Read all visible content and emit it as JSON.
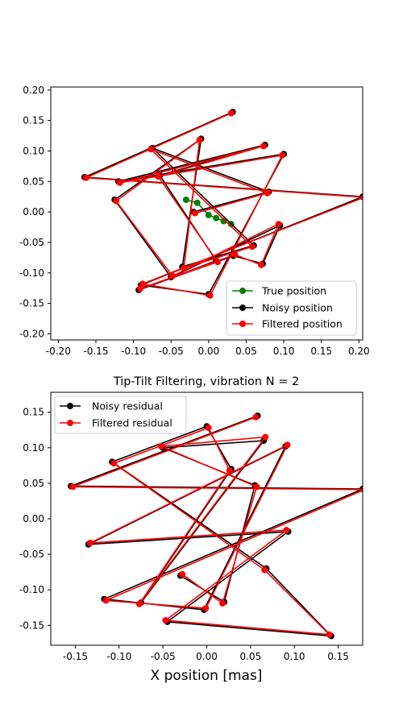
{
  "chart_data": [
    {
      "type": "scatter",
      "title": "",
      "xlabel": "",
      "ylabel": "",
      "xlim": [
        -0.21,
        0.205
      ],
      "ylim": [
        -0.21,
        0.205
      ],
      "xticks": [
        "-0.20",
        "-0.15",
        "-0.10",
        "-0.05",
        "0.00",
        "0.05",
        "0.10",
        "0.15",
        "0.20"
      ],
      "yticks": [
        "-0.20",
        "-0.15",
        "-0.10",
        "-0.05",
        "0.00",
        "0.05",
        "0.10",
        "0.15",
        "0.20"
      ],
      "legend_position": "lower-right",
      "series": [
        {
          "name": "True position",
          "color": "#008000",
          "x": [
            -0.03,
            -0.015,
            0.0,
            0.01,
            0.02,
            0.03
          ],
          "y": [
            0.02,
            0.015,
            -0.005,
            -0.01,
            -0.015,
            -0.02
          ]
        },
        {
          "name": "Noisy position",
          "color": "#000000",
          "x": [
            0.032,
            -0.165,
            0.205,
            -0.09,
            0.0,
            0.1,
            -0.12,
            0.075,
            -0.065,
            0.01,
            -0.093,
            0.033,
            0.072,
            0.095,
            -0.05,
            -0.125,
            -0.01,
            -0.035,
            0.06,
            -0.075,
            0.08,
            -0.02
          ],
          "y": [
            0.164,
            0.057,
            0.025,
            -0.12,
            -0.135,
            0.095,
            0.05,
            0.11,
            0.06,
            -0.08,
            -0.128,
            -0.072,
            -0.085,
            -0.022,
            -0.107,
            0.02,
            0.12,
            -0.09,
            -0.055,
            0.105,
            0.033,
            0.0
          ]
        },
        {
          "name": "Filtered position",
          "color": "#ff0000",
          "x": [
            0.03,
            -0.163,
            0.207,
            -0.088,
            0.002,
            0.098,
            -0.118,
            0.073,
            -0.067,
            0.012,
            -0.091,
            0.035,
            0.07,
            0.093,
            -0.048,
            -0.123,
            -0.012,
            -0.033,
            0.058,
            -0.077,
            0.078,
            -0.018
          ],
          "y": [
            0.162,
            0.056,
            0.024,
            -0.118,
            -0.137,
            0.093,
            0.048,
            0.108,
            0.058,
            -0.082,
            -0.126,
            -0.07,
            -0.087,
            -0.02,
            -0.105,
            0.018,
            0.118,
            -0.092,
            -0.057,
            0.103,
            0.031,
            -0.002
          ]
        }
      ]
    },
    {
      "type": "scatter",
      "title": "Tip-Tilt Filtering, vibration N = 2",
      "xlabel": "X position [mas]",
      "ylabel": "",
      "xlim": [
        -0.178,
        0.178
      ],
      "ylim": [
        -0.178,
        0.178
      ],
      "xticks": [
        "-0.15",
        "-0.10",
        "-0.05",
        "0.00",
        "0.05",
        "0.10",
        "0.15"
      ],
      "yticks": [
        "-0.15",
        "-0.10",
        "-0.05",
        "0.00",
        "0.05",
        "0.10",
        "0.15"
      ],
      "legend_position": "upper-left",
      "series": [
        {
          "name": "Noisy residual",
          "color": "#000000",
          "x": [
            0.058,
            -0.155,
            0.178,
            -0.117,
            -0.003,
            0.09,
            -0.135,
            0.093,
            -0.045,
            0.142,
            0.068,
            -0.108,
            0.0,
            0.028,
            -0.075,
            0.065,
            -0.05,
            0.055,
            0.02,
            -0.03
          ],
          "y": [
            0.145,
            0.046,
            0.042,
            -0.113,
            -0.128,
            0.102,
            -0.036,
            -0.018,
            -0.145,
            -0.165,
            -0.07,
            0.08,
            0.13,
            0.07,
            -0.118,
            0.11,
            0.1,
            0.047,
            -0.117,
            -0.08
          ]
        },
        {
          "name": "Filtered residual",
          "color": "#ff0000",
          "x": [
            0.056,
            -0.153,
            0.18,
            -0.115,
            -0.001,
            0.092,
            -0.133,
            0.091,
            -0.047,
            0.14,
            0.066,
            -0.106,
            0.002,
            0.026,
            -0.077,
            0.067,
            -0.052,
            0.057,
            0.018,
            -0.028
          ],
          "y": [
            0.143,
            0.045,
            0.041,
            -0.115,
            -0.126,
            0.104,
            -0.034,
            -0.016,
            -0.143,
            -0.163,
            -0.072,
            0.078,
            0.128,
            0.068,
            -0.12,
            0.115,
            0.102,
            0.045,
            -0.119,
            -0.078
          ]
        }
      ]
    }
  ]
}
